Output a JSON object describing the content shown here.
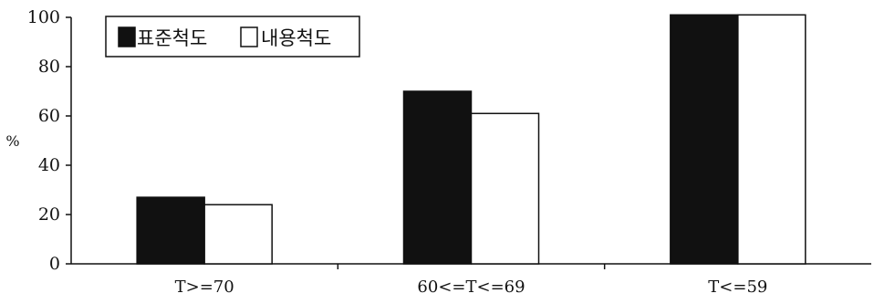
{
  "chart_data": {
    "type": "bar",
    "categories": [
      "T>=70",
      "60<=T<=69",
      "T<=59"
    ],
    "series": [
      {
        "name": "표준척도",
        "values": [
          27,
          70,
          101
        ],
        "color": "#111111"
      },
      {
        "name": "내용척도",
        "values": [
          24,
          61,
          101
        ],
        "color": "#ffffff"
      }
    ],
    "title": "",
    "xlabel": "",
    "ylabel": "%",
    "ylim": [
      0,
      100
    ],
    "yticks": [
      0,
      20,
      40,
      60,
      80,
      100
    ],
    "grid": false,
    "legend_position": "top-left",
    "bar_edge_color": "#111111"
  }
}
